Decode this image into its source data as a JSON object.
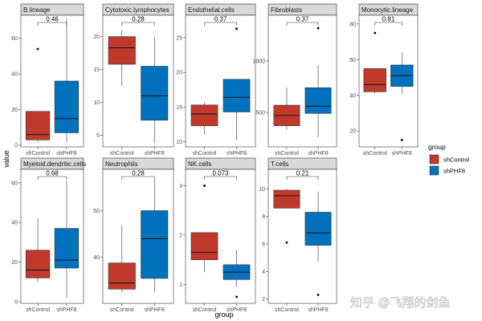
{
  "chart_data": {
    "type": "boxplot",
    "xlabel": "group",
    "ylabel": "value",
    "groups": [
      "shControl",
      "shPHF8"
    ],
    "legend": {
      "title": "group",
      "placement": "right",
      "entries": [
        {
          "label": "shControl",
          "color": "#C0392B"
        },
        {
          "label": "shPHF8",
          "color": "#0072BD"
        }
      ]
    },
    "colors": {
      "shControl": "#C0392B",
      "shPHF8": "#0072BD",
      "strip_bg": "#D9D9D9",
      "border": "#333333"
    },
    "panels": [
      {
        "title": "B.lineage",
        "p": "0.46",
        "ylim": [
          0,
          72
        ],
        "ticks": [
          0,
          20,
          40,
          60
        ],
        "boxes": [
          {
            "group": "shControl",
            "whislo": 2,
            "q1": 3,
            "med": 6,
            "q3": 19,
            "whishi": 19,
            "outliers": [
              54
            ]
          },
          {
            "group": "shPHF8",
            "whislo": 2,
            "q1": 7,
            "med": 15,
            "q3": 36,
            "whishi": 71,
            "outliers": []
          }
        ]
      },
      {
        "title": "Cytotoxic.lymphocytes",
        "p": "0.28",
        "ylim": [
          3.5,
          23
        ],
        "ticks": [
          5,
          10,
          15,
          20
        ],
        "boxes": [
          {
            "group": "shControl",
            "whislo": 12.5,
            "q1": 15.8,
            "med": 18.3,
            "q3": 20,
            "whishi": 21,
            "outliers": []
          },
          {
            "group": "shPHF8",
            "whislo": 3.8,
            "q1": 7.3,
            "med": 11,
            "q3": 15.5,
            "whishi": 20,
            "outliers": []
          }
        ]
      },
      {
        "title": "Endothelial.cells",
        "p": "0.37",
        "ylim": [
          9.5,
          28
        ],
        "ticks": [
          10,
          15,
          20,
          25
        ],
        "boxes": [
          {
            "group": "shControl",
            "whislo": 11,
            "q1": 12.3,
            "med": 14,
            "q3": 15.3,
            "whishi": 15.7,
            "outliers": []
          },
          {
            "group": "shPHF8",
            "whislo": 10.2,
            "q1": 14.3,
            "med": 16.4,
            "q3": 19,
            "whishi": 19,
            "outliers": [
              26.3
            ]
          }
        ]
      },
      {
        "title": "Fibroblasts",
        "p": "0.37",
        "ylim": [
          180,
          1430
        ],
        "ticks": [
          500,
          1000
        ],
        "boxes": [
          {
            "group": "shControl",
            "whislo": 330,
            "q1": 370,
            "med": 470,
            "q3": 570,
            "whishi": 740,
            "outliers": []
          },
          {
            "group": "shPHF8",
            "whislo": 260,
            "q1": 490,
            "med": 560,
            "q3": 740,
            "whishi": 960,
            "outliers": [
              1320
            ]
          }
        ]
      },
      {
        "title": "Monocytic.lineage",
        "p": "0.81",
        "ylim": [
          12,
          84
        ],
        "ticks": [
          20,
          40,
          60,
          80
        ],
        "boxes": [
          {
            "group": "shControl",
            "whislo": 41,
            "q1": 42,
            "med": 46,
            "q3": 55,
            "whishi": 55,
            "outliers": [
              75
            ]
          },
          {
            "group": "shPHF8",
            "whislo": 41,
            "q1": 45,
            "med": 51,
            "q3": 57,
            "whishi": 64,
            "outliers": [
              15
            ]
          }
        ]
      },
      {
        "title": "Myeloid.dendritic.cells",
        "p": "0.68",
        "ylim": [
          0,
          66
        ],
        "ticks": [
          0,
          20,
          40,
          60
        ],
        "boxes": [
          {
            "group": "shControl",
            "whislo": 10,
            "q1": 12,
            "med": 16,
            "q3": 26,
            "whishi": 42,
            "outliers": []
          },
          {
            "group": "shPHF8",
            "whislo": 2,
            "q1": 17,
            "med": 21,
            "q3": 37,
            "whishi": 61,
            "outliers": []
          }
        ]
      },
      {
        "title": "Neutrophils",
        "p": "0.28",
        "ylim": [
          30.5,
          58.5
        ],
        "ticks": [
          40,
          50
        ],
        "boxes": [
          {
            "group": "shControl",
            "whislo": 32.5,
            "q1": 33.2,
            "med": 34.5,
            "q3": 38.8,
            "whishi": 47,
            "outliers": []
          },
          {
            "group": "shPHF8",
            "whislo": 32.5,
            "q1": 35.5,
            "med": 44,
            "q3": 50,
            "whishi": 57,
            "outliers": []
          }
        ]
      },
      {
        "title": "NK.cells",
        "p": "0.073",
        "ylim": [
          0.65,
          3.3
        ],
        "ticks": [
          1,
          2,
          3
        ],
        "boxes": [
          {
            "group": "shControl",
            "whislo": 1.25,
            "q1": 1.5,
            "med": 1.65,
            "q3": 2.05,
            "whishi": 2.05,
            "outliers": [
              3.0
            ]
          },
          {
            "group": "shPHF8",
            "whislo": 0.95,
            "q1": 1.1,
            "med": 1.25,
            "q3": 1.4,
            "whishi": 1.7,
            "outliers": [
              0.75
            ]
          }
        ]
      },
      {
        "title": "T.cells",
        "p": "0.21",
        "ylim": [
          1.8,
          11.3
        ],
        "ticks": [
          2,
          4,
          6,
          8,
          10
        ],
        "boxes": [
          {
            "group": "shControl",
            "whislo": 8.6,
            "q1": 8.6,
            "med": 9.5,
            "q3": 9.9,
            "whishi": 10,
            "outliers": [
              6.1
            ]
          },
          {
            "group": "shPHF8",
            "whislo": 4.7,
            "q1": 5.9,
            "med": 6.8,
            "q3": 8.3,
            "whishi": 9.8,
            "outliers": [
              2.3
            ]
          }
        ]
      }
    ]
  },
  "watermark": "知乎 @飞翔的剑鱼"
}
